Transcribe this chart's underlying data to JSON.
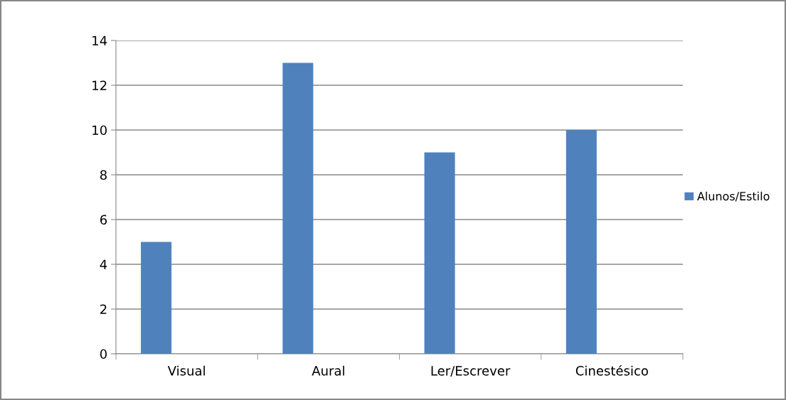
{
  "chart_data": {
    "type": "bar",
    "categories": [
      "Visual",
      "Aural",
      "Ler/Escrever",
      "Cinestésico"
    ],
    "series": [
      {
        "name": "Alunos/Estilo",
        "color": "#4f81bd",
        "values": [
          5,
          13,
          9,
          10
        ]
      }
    ],
    "ylim": [
      0,
      14
    ],
    "yticks": [
      0,
      2,
      4,
      6,
      8,
      10,
      12,
      14
    ],
    "grid": "y",
    "legend": "right"
  }
}
